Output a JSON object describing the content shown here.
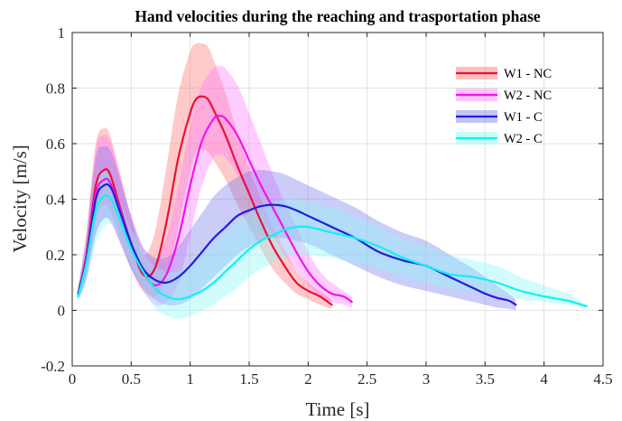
{
  "chart_data": {
    "type": "line",
    "title": "Hand velocities during the reaching and trasportation phase",
    "xlabel": "Time [s]",
    "ylabel": "Velocity [m/s]",
    "xlim": [
      0,
      4.5
    ],
    "ylim": [
      -0.2,
      1
    ],
    "xticks": [
      "0",
      "0.5",
      "1",
      "1.5",
      "2",
      "2.5",
      "3",
      "3.5",
      "4",
      "4.5"
    ],
    "yticks": [
      "-0.2",
      "0",
      "0.2",
      "0.4",
      "0.6",
      "0.8",
      "1"
    ],
    "grid": true,
    "legend_position": "top-right",
    "series": [
      {
        "name": "W1 - NC",
        "color": "#e8103c",
        "band_color": "#ff7070",
        "x": [
          0.05,
          0.12,
          0.2,
          0.27,
          0.32,
          0.4,
          0.5,
          0.6,
          0.7,
          0.8,
          0.9,
          1.0,
          1.05,
          1.1,
          1.15,
          1.2,
          1.3,
          1.4,
          1.5,
          1.6,
          1.7,
          1.8,
          1.9,
          2.0,
          2.1,
          2.2
        ],
        "y": [
          0.06,
          0.2,
          0.45,
          0.505,
          0.49,
          0.38,
          0.24,
          0.13,
          0.15,
          0.32,
          0.55,
          0.71,
          0.76,
          0.77,
          0.76,
          0.72,
          0.63,
          0.52,
          0.42,
          0.32,
          0.23,
          0.16,
          0.1,
          0.07,
          0.05,
          0.02
        ],
        "upper": [
          0.08,
          0.28,
          0.6,
          0.655,
          0.63,
          0.5,
          0.33,
          0.2,
          0.28,
          0.52,
          0.78,
          0.93,
          0.96,
          0.96,
          0.95,
          0.9,
          0.78,
          0.64,
          0.51,
          0.4,
          0.3,
          0.22,
          0.14,
          0.1,
          0.07,
          0.04
        ],
        "lower": [
          0.04,
          0.13,
          0.32,
          0.38,
          0.36,
          0.27,
          0.15,
          0.07,
          0.05,
          0.12,
          0.3,
          0.5,
          0.57,
          0.58,
          0.57,
          0.54,
          0.47,
          0.38,
          0.3,
          0.22,
          0.15,
          0.1,
          0.06,
          0.04,
          0.02,
          0.005
        ]
      },
      {
        "name": "W2 - NC",
        "color": "#ef14ef",
        "band_color": "#ff7aff",
        "x": [
          0.05,
          0.12,
          0.2,
          0.27,
          0.32,
          0.4,
          0.5,
          0.6,
          0.7,
          0.8,
          0.9,
          1.0,
          1.1,
          1.2,
          1.25,
          1.3,
          1.4,
          1.5,
          1.6,
          1.7,
          1.8,
          1.9,
          2.0,
          2.1,
          2.2,
          2.3,
          2.37
        ],
        "y": [
          0.06,
          0.19,
          0.42,
          0.47,
          0.46,
          0.37,
          0.24,
          0.14,
          0.09,
          0.13,
          0.26,
          0.45,
          0.61,
          0.69,
          0.7,
          0.69,
          0.63,
          0.54,
          0.45,
          0.37,
          0.29,
          0.21,
          0.14,
          0.09,
          0.06,
          0.05,
          0.03
        ],
        "upper": [
          0.08,
          0.27,
          0.58,
          0.63,
          0.61,
          0.5,
          0.34,
          0.22,
          0.18,
          0.26,
          0.45,
          0.66,
          0.81,
          0.87,
          0.88,
          0.87,
          0.81,
          0.71,
          0.6,
          0.49,
          0.39,
          0.3,
          0.21,
          0.14,
          0.1,
          0.07,
          0.05
        ],
        "lower": [
          0.04,
          0.12,
          0.28,
          0.33,
          0.32,
          0.25,
          0.15,
          0.07,
          0.02,
          0.03,
          0.1,
          0.27,
          0.45,
          0.55,
          0.56,
          0.55,
          0.49,
          0.42,
          0.34,
          0.27,
          0.2,
          0.14,
          0.09,
          0.05,
          0.03,
          0.02,
          0.01
        ]
      },
      {
        "name": "W1 - C",
        "color": "#1e1ee0",
        "band_color": "#7a7aee",
        "x": [
          0.05,
          0.12,
          0.2,
          0.27,
          0.33,
          0.4,
          0.5,
          0.6,
          0.7,
          0.8,
          0.9,
          1.0,
          1.1,
          1.2,
          1.3,
          1.4,
          1.5,
          1.6,
          1.7,
          1.8,
          1.9,
          2.0,
          2.2,
          2.4,
          2.6,
          2.8,
          3.0,
          3.2,
          3.4,
          3.5,
          3.6,
          3.7,
          3.76
        ],
        "y": [
          0.06,
          0.18,
          0.4,
          0.45,
          0.44,
          0.36,
          0.24,
          0.15,
          0.11,
          0.1,
          0.12,
          0.16,
          0.21,
          0.26,
          0.3,
          0.34,
          0.36,
          0.375,
          0.38,
          0.375,
          0.36,
          0.34,
          0.3,
          0.26,
          0.21,
          0.18,
          0.16,
          0.12,
          0.08,
          0.06,
          0.045,
          0.035,
          0.02
        ],
        "upper": [
          0.08,
          0.26,
          0.55,
          0.59,
          0.57,
          0.48,
          0.34,
          0.23,
          0.19,
          0.19,
          0.23,
          0.29,
          0.35,
          0.41,
          0.45,
          0.48,
          0.5,
          0.505,
          0.5,
          0.49,
          0.47,
          0.45,
          0.41,
          0.37,
          0.32,
          0.28,
          0.25,
          0.2,
          0.15,
          0.12,
          0.09,
          0.06,
          0.04
        ],
        "lower": [
          0.04,
          0.11,
          0.27,
          0.33,
          0.32,
          0.25,
          0.15,
          0.08,
          0.04,
          0.02,
          0.02,
          0.04,
          0.08,
          0.12,
          0.16,
          0.2,
          0.23,
          0.25,
          0.26,
          0.26,
          0.25,
          0.24,
          0.2,
          0.16,
          0.12,
          0.09,
          0.07,
          0.05,
          0.03,
          0.02,
          0.01,
          0.005,
          0.0
        ]
      },
      {
        "name": "W2 - C",
        "color": "#12f0f0",
        "band_color": "#88f8f8",
        "x": [
          0.05,
          0.12,
          0.2,
          0.27,
          0.33,
          0.4,
          0.5,
          0.6,
          0.7,
          0.8,
          0.9,
          1.0,
          1.1,
          1.2,
          1.3,
          1.4,
          1.5,
          1.6,
          1.7,
          1.8,
          1.9,
          2.0,
          2.2,
          2.4,
          2.6,
          2.8,
          3.0,
          3.2,
          3.4,
          3.6,
          3.8,
          4.0,
          4.2,
          4.28,
          4.36
        ],
        "y": [
          0.05,
          0.17,
          0.36,
          0.41,
          0.4,
          0.33,
          0.22,
          0.14,
          0.08,
          0.05,
          0.04,
          0.05,
          0.07,
          0.1,
          0.14,
          0.18,
          0.22,
          0.25,
          0.27,
          0.29,
          0.3,
          0.3,
          0.28,
          0.26,
          0.23,
          0.19,
          0.16,
          0.13,
          0.12,
          0.1,
          0.07,
          0.05,
          0.035,
          0.025,
          0.015
        ],
        "upper": [
          0.07,
          0.24,
          0.47,
          0.5,
          0.48,
          0.4,
          0.29,
          0.21,
          0.16,
          0.14,
          0.14,
          0.16,
          0.2,
          0.24,
          0.28,
          0.32,
          0.35,
          0.38,
          0.39,
          0.4,
          0.4,
          0.39,
          0.37,
          0.34,
          0.3,
          0.26,
          0.23,
          0.2,
          0.18,
          0.16,
          0.12,
          0.09,
          0.06,
          0.04,
          0.02
        ],
        "lower": [
          0.03,
          0.1,
          0.24,
          0.3,
          0.31,
          0.26,
          0.16,
          0.08,
          0.01,
          -0.02,
          -0.03,
          -0.02,
          0.0,
          0.02,
          0.05,
          0.08,
          0.12,
          0.15,
          0.17,
          0.19,
          0.2,
          0.2,
          0.19,
          0.17,
          0.15,
          0.12,
          0.1,
          0.08,
          0.07,
          0.06,
          0.04,
          0.03,
          0.02,
          0.015,
          0.01
        ]
      }
    ]
  }
}
